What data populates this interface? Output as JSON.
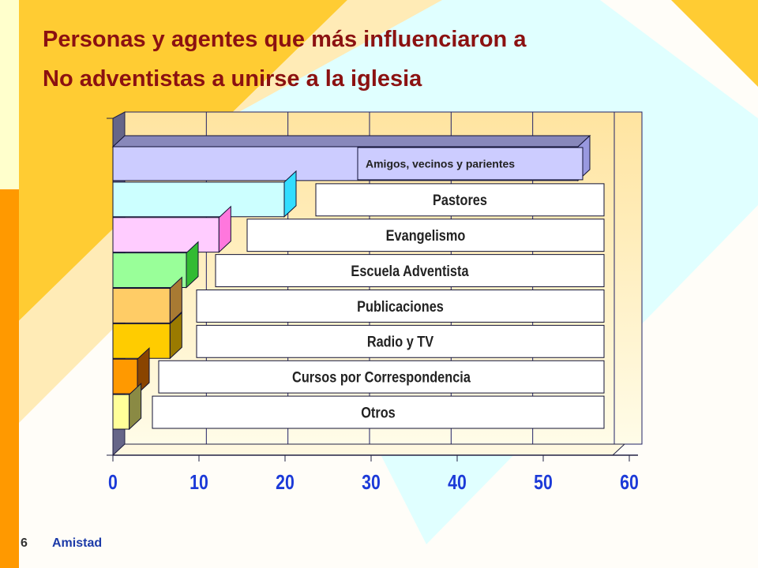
{
  "slide": {
    "title_line_1": "Personas y agentes que más influenciaron  a",
    "title_line_2": "No adventistas a unirse a la iglesia",
    "footer_number": "6",
    "footer_topic": "Amistad"
  },
  "colors": {
    "title": "#8b1111",
    "axis_labels": "#1c3ad8",
    "background_left_band": "#ff9900",
    "background_light": "#ffffcc",
    "background_diamond": "#e0ffff",
    "background_warm": "#ffcc33",
    "plot_wall_top": "#ffe4a0",
    "plot_wall_bottom": "#fffce8",
    "label_box": "#ffffff",
    "label_text": "#222222"
  },
  "chart_data": {
    "type": "bar",
    "orientation": "horizontal",
    "three_d": true,
    "categories": [
      "Amigos, vecinos y  parientes",
      "Pastores",
      "Evangelismo",
      "Escuela Adventista",
      "Publicaciones",
      "Radio y TV",
      "Cursos por  Correspondencia",
      "Otros"
    ],
    "values": [
      57,
      21,
      13,
      9,
      7,
      7,
      3,
      2
    ],
    "bar_colors": [
      "#ccccff",
      "#ccffff",
      "#ffccff",
      "#99ff99",
      "#ffcc66",
      "#ffcc00",
      "#ff9900",
      "#ffff99"
    ],
    "bar_side_colors": [
      "#9999e0",
      "#33ddff",
      "#ff77dd",
      "#33bb33",
      "#a87a33",
      "#9a7a00",
      "#8a4400",
      "#8a8a44"
    ],
    "x_ticks": [
      0,
      10,
      20,
      30,
      40,
      50,
      60
    ],
    "xlim": [
      0,
      60
    ],
    "grid": true,
    "title": "",
    "xlabel": "",
    "ylabel": ""
  }
}
